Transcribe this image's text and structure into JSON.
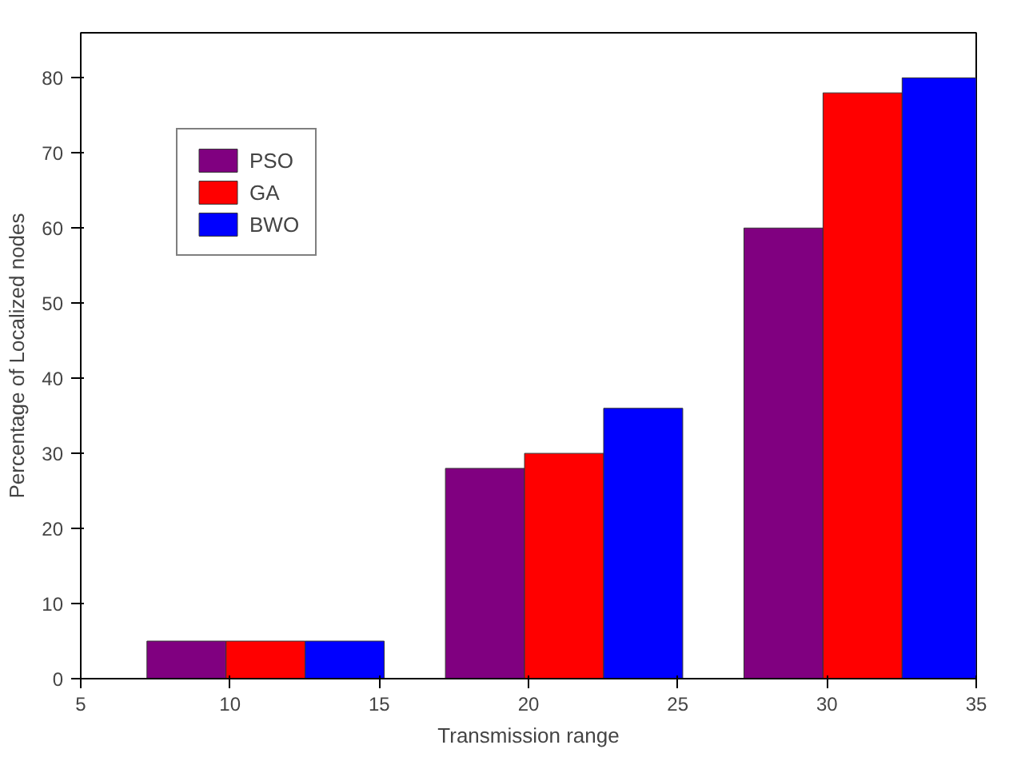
{
  "chart_data": {
    "type": "bar",
    "xlabel": "Transmission range",
    "ylabel": "Percentage of Localized nodes",
    "x": [
      10,
      20,
      30
    ],
    "series": [
      {
        "name": "PSO",
        "color": "#800080",
        "values": [
          5,
          28,
          60
        ]
      },
      {
        "name": "GA",
        "color": "#ff0000",
        "values": [
          5,
          30,
          78
        ]
      },
      {
        "name": "BWO",
        "color": "#0000ff",
        "values": [
          5,
          36,
          80
        ]
      }
    ],
    "xlim": [
      5,
      35
    ],
    "xticks": [
      5,
      10,
      15,
      20,
      25,
      30,
      35
    ],
    "ylim": [
      0,
      86
    ],
    "yticks": [
      0,
      10,
      20,
      30,
      40,
      50,
      60,
      70,
      80
    ],
    "grid": false,
    "legend": "top left"
  }
}
